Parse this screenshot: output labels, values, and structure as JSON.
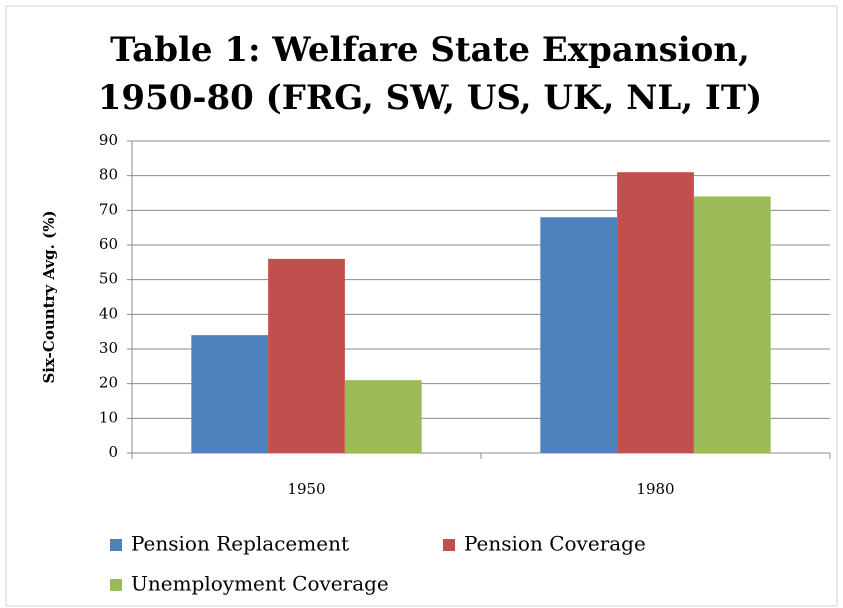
{
  "chart_data": {
    "type": "bar",
    "title_lines": [
      "Table 1: Welfare State Expansion,",
      "1950-80 (FRG, SW, US, UK, NL, IT)"
    ],
    "y_label": "Six-Country Avg. (%)",
    "categories": [
      "1950",
      "1980"
    ],
    "series": [
      {
        "name": "Pension Replacement",
        "color": "#4f81bd",
        "values": [
          34,
          68
        ]
      },
      {
        "name": "Pension Coverage",
        "color": "#c0504d",
        "values": [
          56,
          81
        ]
      },
      {
        "name": "Unemployment Coverage",
        "color": "#9bbb59",
        "values": [
          21,
          74
        ]
      }
    ],
    "ylim": [
      0,
      90
    ],
    "yticks": [
      0,
      10,
      20,
      30,
      40,
      50,
      60,
      70,
      80,
      90
    ],
    "grid": true,
    "legend": "bottom"
  }
}
